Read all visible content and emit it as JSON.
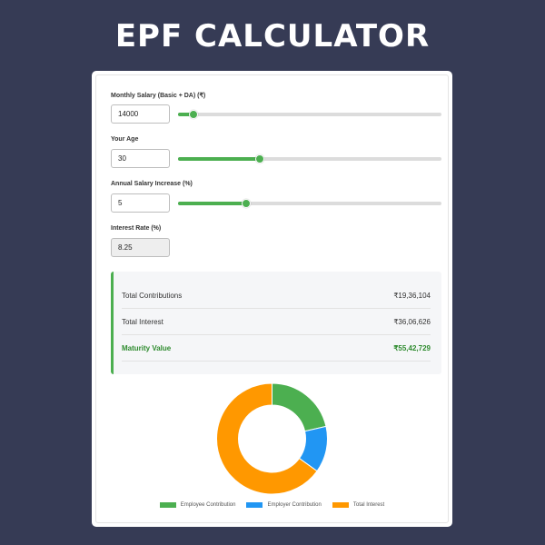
{
  "title": "EPF CALCULATOR",
  "fields": {
    "salary": {
      "label": "Monthly Salary (Basic + DA) (₹)",
      "value": "14000",
      "slider_fraction": 0.06
    },
    "age": {
      "label": "Your Age",
      "value": "30",
      "slider_fraction": 0.31
    },
    "increase": {
      "label": "Annual Salary Increase (%)",
      "value": "5",
      "slider_fraction": 0.26
    },
    "interest": {
      "label": "Interest Rate (%)",
      "value": "8.25"
    }
  },
  "results": {
    "total_contributions": {
      "label": "Total Contributions",
      "value": "₹19,36,104"
    },
    "total_interest": {
      "label": "Total Interest",
      "value": "₹36,06,626"
    },
    "maturity": {
      "label": "Maturity Value",
      "value": "₹55,42,729"
    }
  },
  "colors": {
    "accent": "#4caf50",
    "employee": "#4caf50",
    "employer": "#2196f3",
    "interest": "#ff9800"
  },
  "chart_data": {
    "type": "pie",
    "variant": "doughnut",
    "categories": [
      "Employee Contribution",
      "Employer Contribution",
      "Total Interest"
    ],
    "values": [
      1187520,
      748584,
      3606626
    ],
    "colors": [
      "#4caf50",
      "#2196f3",
      "#ff9800"
    ],
    "legend": "bottom"
  }
}
